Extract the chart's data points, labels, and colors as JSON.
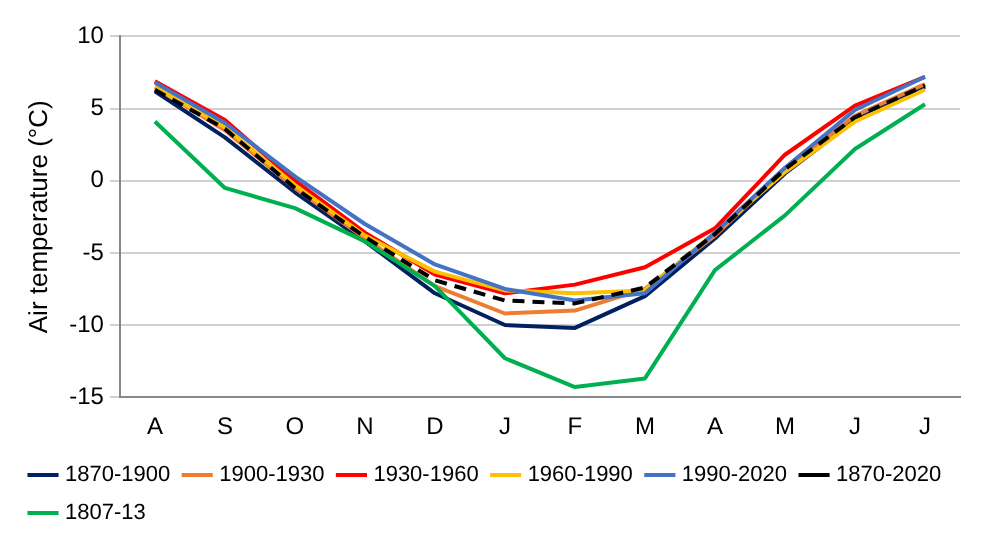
{
  "chart_data": {
    "type": "line",
    "ylabel": "Air temperature (°C)",
    "categories": [
      "A",
      "S",
      "O",
      "N",
      "D",
      "J",
      "F",
      "M",
      "A",
      "M",
      "J",
      "J"
    ],
    "series": [
      {
        "name": "1870-1900",
        "color": "#002060",
        "values": [
          6.2,
          3.0,
          -0.8,
          -4.2,
          -7.8,
          -10.0,
          -10.2,
          -8.0,
          -4.0,
          0.5,
          4.2,
          6.5
        ]
      },
      {
        "name": "1900-1930",
        "color": "#ed7d31",
        "values": [
          6.5,
          3.5,
          -0.5,
          -4.0,
          -7.3,
          -9.2,
          -9.0,
          -7.5,
          -3.8,
          0.8,
          4.5,
          6.7
        ]
      },
      {
        "name": "1930-1960",
        "color": "#ff0000",
        "values": [
          6.9,
          4.2,
          0.0,
          -3.6,
          -6.5,
          -7.8,
          -7.2,
          -6.0,
          -3.3,
          1.8,
          5.2,
          7.2
        ]
      },
      {
        "name": "1960-1990",
        "color": "#ffc000",
        "values": [
          6.5,
          3.7,
          -0.3,
          -3.8,
          -6.3,
          -7.6,
          -7.8,
          -7.6,
          -3.6,
          0.6,
          4.1,
          6.3
        ]
      },
      {
        "name": "1990-2020",
        "color": "#4472c4",
        "values": [
          6.8,
          4.0,
          0.3,
          -3.0,
          -5.8,
          -7.5,
          -8.3,
          -7.8,
          -3.6,
          0.9,
          4.9,
          7.2
        ]
      },
      {
        "name": "1870-2020",
        "color": "#000000",
        "line_style": "dashed",
        "values": [
          6.3,
          3.6,
          -0.5,
          -3.9,
          -6.9,
          -8.3,
          -8.5,
          -7.4,
          -3.7,
          0.8,
          4.4,
          6.6
        ]
      },
      {
        "name": "1807-13",
        "color": "#00b050",
        "values": [
          4.1,
          -0.5,
          -1.9,
          -4.2,
          -7.3,
          -12.3,
          -14.3,
          -13.7,
          -6.2,
          -2.4,
          2.2,
          5.3
        ]
      }
    ],
    "ylim": [
      -15,
      10
    ],
    "yticks": [
      -15,
      -10,
      -5,
      0,
      5,
      10
    ],
    "grid": "y",
    "legend": "bottom",
    "marker": "none",
    "line_style": "solid"
  }
}
